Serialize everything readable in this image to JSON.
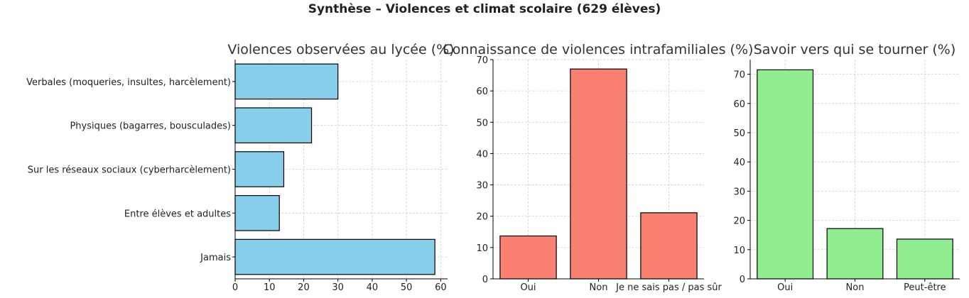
{
  "suptitle": "Synthèse – Violences et climat scolaire (629 élèves)",
  "chart_data": [
    {
      "type": "bar",
      "orientation": "horizontal",
      "title": "Violences observées au lycée (%)",
      "categories": [
        "Verbales (moqueries, insultes, harcèlement)",
        "Physiques (bagarres, bousculades)",
        "Sur les réseaux sociaux (cyberharcèlement)",
        "Entre élèves et adultes",
        "Jamais"
      ],
      "values": [
        30,
        22.3,
        14.2,
        12.9,
        58.3
      ],
      "xlim": [
        0,
        62
      ],
      "ticks": [
        0,
        10,
        20,
        30,
        40,
        50,
        60
      ],
      "color": "#87ceeb",
      "grid": true
    },
    {
      "type": "bar",
      "title": "Connaissance de violences intrafamiliales (%)",
      "categories": [
        "Oui",
        "Non",
        "Je ne sais pas / pas sûr"
      ],
      "values": [
        13.7,
        67,
        21.1
      ],
      "ylim": [
        0,
        70
      ],
      "ticks": [
        0,
        10,
        20,
        30,
        40,
        50,
        60,
        70
      ],
      "color": "#fa8072",
      "grid": true
    },
    {
      "type": "bar",
      "title": "Savoir vers qui se tourner (%)",
      "categories": [
        "Oui",
        "Non",
        "Peut-être"
      ],
      "values": [
        71.5,
        17.2,
        13.6
      ],
      "ylim": [
        0,
        75
      ],
      "ticks": [
        0,
        10,
        20,
        30,
        40,
        50,
        60,
        70
      ],
      "color": "#90ee90",
      "grid": true
    }
  ]
}
